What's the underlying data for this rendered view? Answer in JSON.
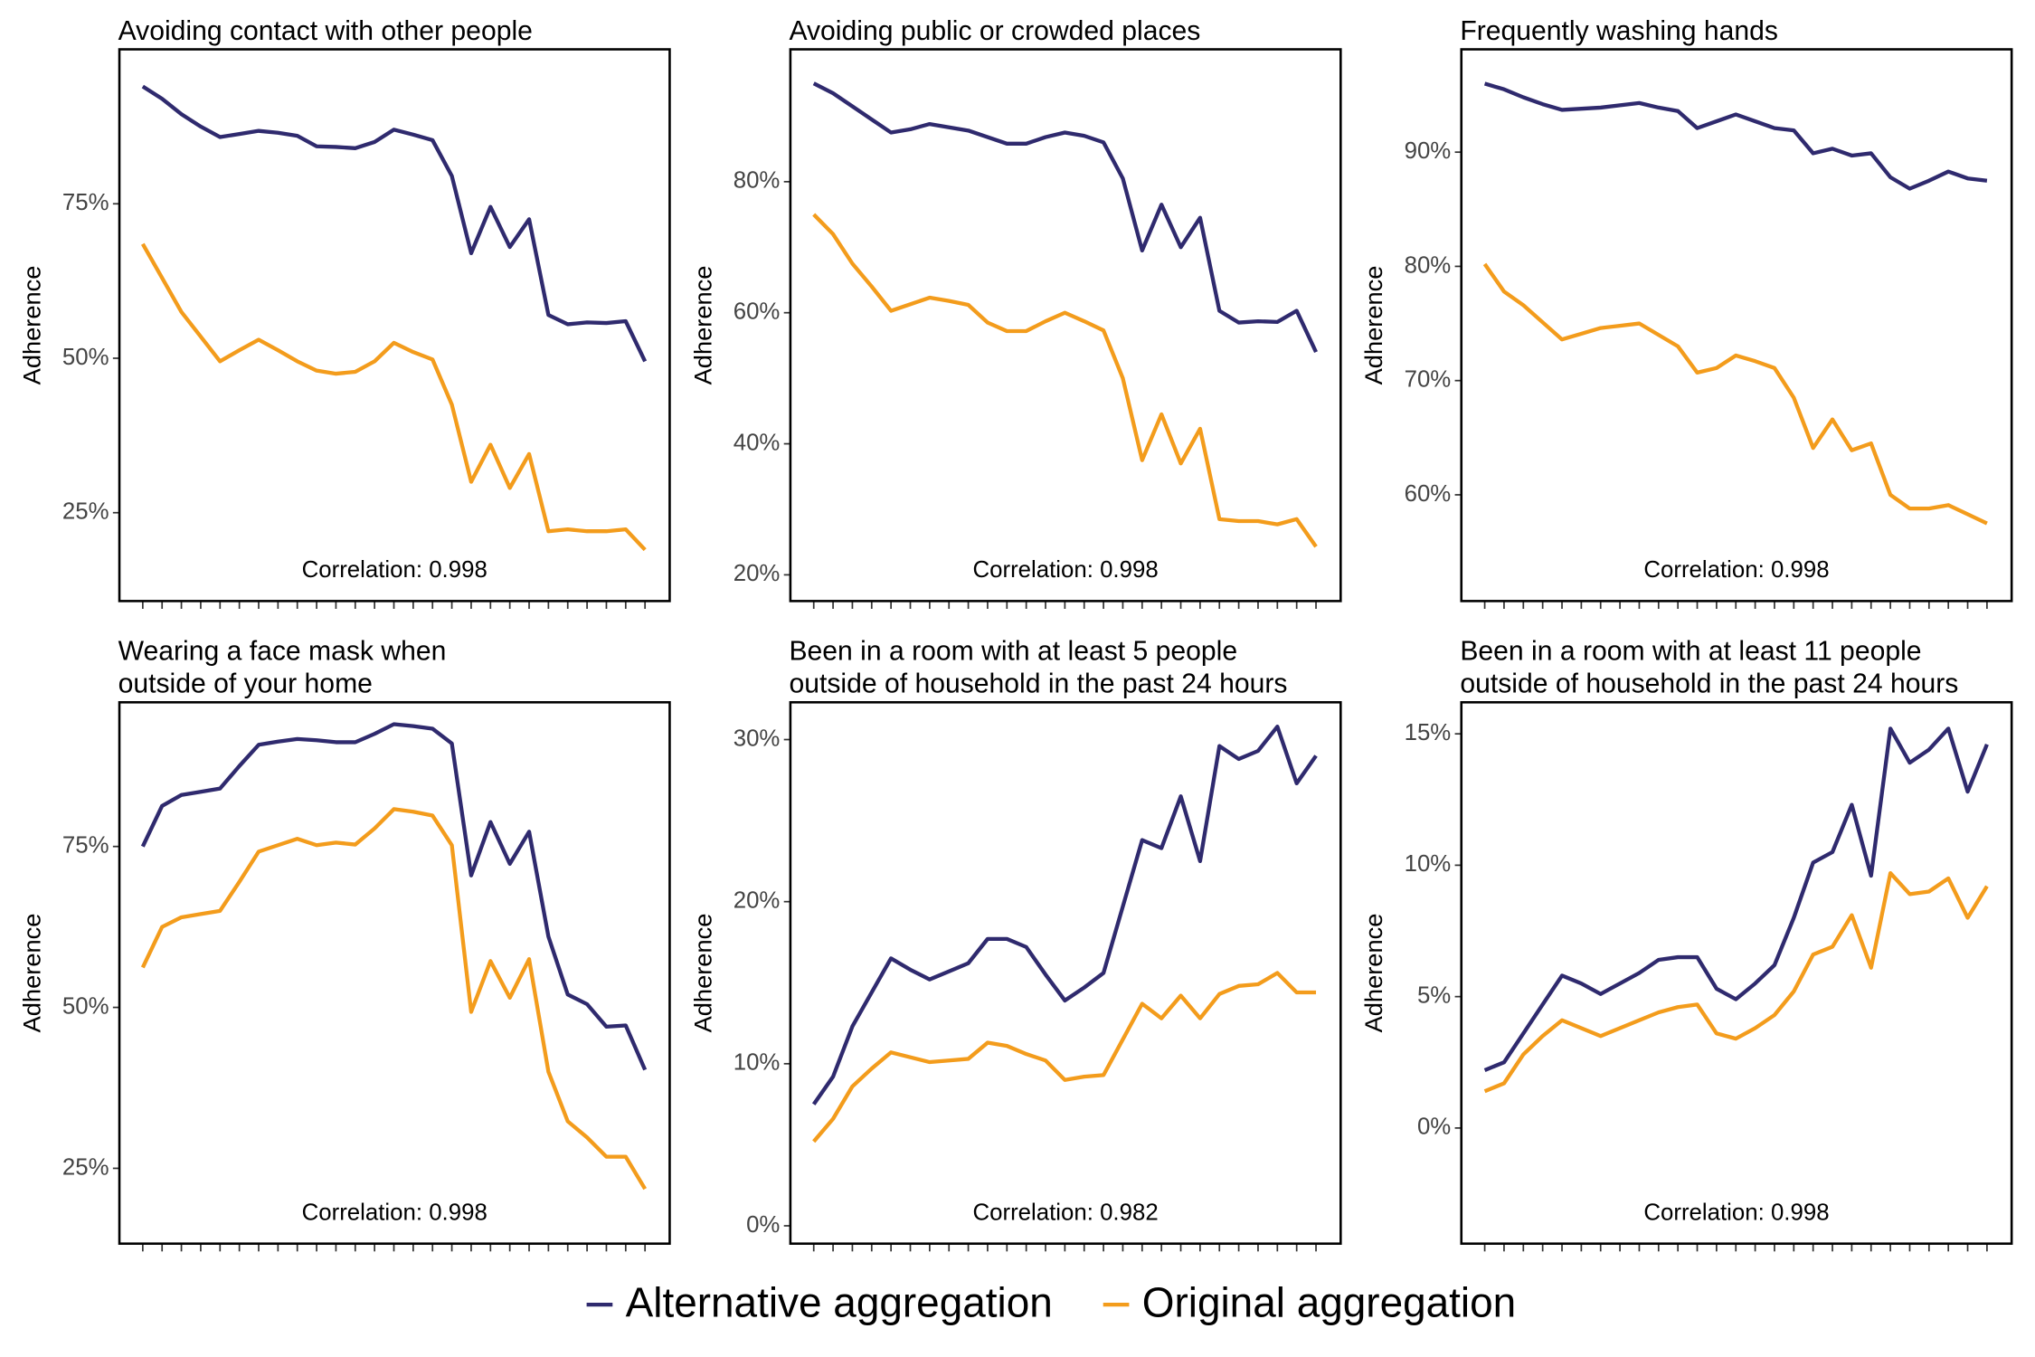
{
  "chart_data": [
    {
      "type": "line",
      "title": [
        "Avoiding contact with other people"
      ],
      "ylabel": "Adherence",
      "annotation": "Correlation: 0.998",
      "categories": [
        null,
        null,
        null,
        null,
        null,
        null,
        null,
        null,
        null,
        null,
        null,
        null,
        null,
        null,
        null,
        null,
        null,
        null,
        null,
        null,
        null,
        null,
        null,
        null,
        null,
        null,
        null
      ],
      "series": [
        {
          "name": "Alternative aggregation",
          "color": "#2f2a6e",
          "values": [
            94,
            92,
            89.5,
            87.5,
            85.8,
            86.3,
            86.8,
            86.5,
            86,
            84.3,
            84.2,
            84,
            85,
            87,
            86.2,
            85.3,
            79.5,
            67,
            74.5,
            68,
            72.5,
            57,
            55.5,
            55.8,
            55.7,
            56,
            49.5
          ]
        },
        {
          "name": "Original aggregation",
          "color": "#f39c1c",
          "values": [
            68.5,
            63,
            57.5,
            53.5,
            49.5,
            51.3,
            53,
            51.3,
            49.5,
            48,
            47.5,
            47.8,
            49.5,
            52.5,
            51,
            49.8,
            42.5,
            30,
            36,
            29,
            34.5,
            22,
            22.3,
            22,
            22,
            22.3,
            19
          ]
        }
      ],
      "ylim": [
        10.7,
        100
      ],
      "yticks": [
        {
          "value": 25,
          "label": "25%"
        },
        {
          "value": 50,
          "label": "50%"
        },
        {
          "value": 75,
          "label": "75%"
        }
      ]
    },
    {
      "type": "line",
      "title": [
        "Avoiding public or crowded places"
      ],
      "ylabel": "Adherence",
      "annotation": "Correlation: 0.998",
      "categories": [
        null,
        null,
        null,
        null,
        null,
        null,
        null,
        null,
        null,
        null,
        null,
        null,
        null,
        null,
        null,
        null,
        null,
        null,
        null,
        null,
        null,
        null,
        null,
        null,
        null,
        null,
        null
      ],
      "series": [
        {
          "name": "Alternative aggregation",
          "color": "#2f2a6e",
          "values": [
            95,
            93.5,
            91.5,
            89.5,
            87.5,
            88,
            88.8,
            88.3,
            87.8,
            86.8,
            85.8,
            85.8,
            86.8,
            87.5,
            87,
            86,
            80.5,
            69.5,
            76.5,
            70,
            74.5,
            60.3,
            58.5,
            58.7,
            58.6,
            60.3,
            54
          ]
        },
        {
          "name": "Original aggregation",
          "color": "#f39c1c",
          "values": [
            75,
            72,
            67.5,
            64,
            60.3,
            61.3,
            62.3,
            61.8,
            61.2,
            58.5,
            57.2,
            57.2,
            58.7,
            60,
            58.7,
            57.3,
            50,
            37.5,
            44.5,
            37,
            42.3,
            28.5,
            28.2,
            28.2,
            27.7,
            28.5,
            24.3
          ]
        }
      ],
      "ylim": [
        16,
        100.2
      ],
      "yticks": [
        {
          "value": 20,
          "label": "20%"
        },
        {
          "value": 40,
          "label": "40%"
        },
        {
          "value": 60,
          "label": "60%"
        },
        {
          "value": 80,
          "label": "80%"
        }
      ]
    },
    {
      "type": "line",
      "title": [
        "Frequently washing hands"
      ],
      "ylabel": "Adherence",
      "annotation": "Correlation: 0.998",
      "categories": [
        null,
        null,
        null,
        null,
        null,
        null,
        null,
        null,
        null,
        null,
        null,
        null,
        null,
        null,
        null,
        null,
        null,
        null,
        null,
        null,
        null,
        null,
        null,
        null,
        null,
        null,
        null
      ],
      "series": [
        {
          "name": "Alternative aggregation",
          "color": "#2f2a6e",
          "values": [
            96,
            95.5,
            94.8,
            94.2,
            93.7,
            93.8,
            93.9,
            94.1,
            94.3,
            93.9,
            93.6,
            92.1,
            92.7,
            93.3,
            92.7,
            92.1,
            91.9,
            89.9,
            90.3,
            89.7,
            89.9,
            87.8,
            86.8,
            87.5,
            88.3,
            87.7,
            87.5
          ]
        },
        {
          "name": "Original aggregation",
          "color": "#f39c1c",
          "values": [
            80.2,
            77.8,
            76.6,
            75.1,
            73.6,
            74.1,
            74.6,
            74.8,
            75,
            74,
            73,
            70.7,
            71.1,
            72.2,
            71.7,
            71.1,
            68.5,
            64.1,
            66.6,
            63.9,
            64.5,
            60,
            58.8,
            58.8,
            59.1,
            58.3,
            57.5
          ]
        }
      ],
      "ylim": [
        50.7,
        99
      ],
      "yticks": [
        {
          "value": 60,
          "label": "60%"
        },
        {
          "value": 70,
          "label": "70%"
        },
        {
          "value": 80,
          "label": "80%"
        },
        {
          "value": 90,
          "label": "90%"
        }
      ]
    },
    {
      "type": "line",
      "title": [
        "Wearing a face mask when",
        "outside of your home"
      ],
      "ylabel": "Adherence",
      "annotation": "Correlation: 0.998",
      "categories": [
        null,
        null,
        null,
        null,
        null,
        null,
        null,
        null,
        null,
        null,
        null,
        null,
        null,
        null,
        null,
        null,
        null,
        null,
        null,
        null,
        null,
        null,
        null,
        null,
        null,
        null,
        null
      ],
      "series": [
        {
          "name": "Alternative aggregation",
          "color": "#2f2a6e",
          "values": [
            75,
            81.3,
            83,
            83.5,
            84,
            87.5,
            90.8,
            91.3,
            91.7,
            91.5,
            91.2,
            91.2,
            92.5,
            94,
            93.7,
            93.3,
            91,
            70.5,
            78.8,
            72.3,
            77.3,
            61,
            52,
            50.5,
            47,
            47.2,
            40.3
          ]
        },
        {
          "name": "Original aggregation",
          "color": "#f39c1c",
          "values": [
            56.2,
            62.5,
            64,
            64.5,
            65,
            69.5,
            74.2,
            75.2,
            76.2,
            75.2,
            75.6,
            75.3,
            77.8,
            80.8,
            80.4,
            79.8,
            75.2,
            49.3,
            57.2,
            51.5,
            57.5,
            40,
            32.3,
            29.8,
            26.8,
            26.8,
            21.8
          ]
        }
      ],
      "ylim": [
        13.3,
        97.4
      ],
      "yticks": [
        {
          "value": 25,
          "label": "25%"
        },
        {
          "value": 50,
          "label": "50%"
        },
        {
          "value": 75,
          "label": "75%"
        }
      ]
    },
    {
      "type": "line",
      "title": [
        "Been in a room with at least 5 people",
        "outside of household in the past 24 hours"
      ],
      "ylabel": "Adherence",
      "annotation": "Correlation: 0.982",
      "categories": [
        null,
        null,
        null,
        null,
        null,
        null,
        null,
        null,
        null,
        null,
        null,
        null,
        null,
        null,
        null,
        null,
        null,
        null,
        null,
        null,
        null,
        null,
        null,
        null,
        null,
        null,
        null
      ],
      "series": [
        {
          "name": "Alternative aggregation",
          "color": "#2f2a6e",
          "values": [
            7.5,
            9.2,
            12.3,
            14.4,
            16.5,
            15.8,
            15.2,
            15.7,
            16.2,
            17.7,
            17.7,
            17.2,
            15.5,
            13.9,
            14.7,
            15.6,
            19.7,
            23.8,
            23.3,
            26.5,
            22.5,
            29.6,
            28.8,
            29.3,
            30.8,
            27.3,
            29
          ]
        },
        {
          "name": "Original aggregation",
          "color": "#f39c1c",
          "values": [
            5.2,
            6.6,
            8.6,
            9.7,
            10.7,
            10.4,
            10.1,
            10.2,
            10.3,
            11.3,
            11.1,
            10.6,
            10.2,
            9,
            9.2,
            9.3,
            11.5,
            13.7,
            12.8,
            14.2,
            12.8,
            14.3,
            14.8,
            14.9,
            15.6,
            14.4,
            14.4
          ]
        }
      ],
      "ylim": [
        -1.1,
        32.3
      ],
      "yticks": [
        {
          "value": 0,
          "label": "0%"
        },
        {
          "value": 10,
          "label": "10%"
        },
        {
          "value": 20,
          "label": "20%"
        },
        {
          "value": 30,
          "label": "30%"
        }
      ]
    },
    {
      "type": "line",
      "title": [
        "Been in a room with at least 11 people",
        "outside of household in the past 24 hours"
      ],
      "ylabel": "Adherence",
      "annotation": "Correlation: 0.998",
      "categories": [
        null,
        null,
        null,
        null,
        null,
        null,
        null,
        null,
        null,
        null,
        null,
        null,
        null,
        null,
        null,
        null,
        null,
        null,
        null,
        null,
        null,
        null,
        null,
        null,
        null,
        null,
        null
      ],
      "series": [
        {
          "name": "Alternative aggregation",
          "color": "#2f2a6e",
          "values": [
            2.2,
            2.5,
            3.6,
            4.7,
            5.8,
            5.5,
            5.1,
            5.5,
            5.9,
            6.4,
            6.5,
            6.5,
            5.3,
            4.9,
            5.5,
            6.2,
            8,
            10.1,
            10.5,
            12.3,
            9.6,
            15.2,
            13.9,
            14.4,
            15.2,
            12.8,
            14.6
          ]
        },
        {
          "name": "Original aggregation",
          "color": "#f39c1c",
          "values": [
            1.4,
            1.7,
            2.8,
            3.5,
            4.1,
            3.8,
            3.5,
            3.8,
            4.1,
            4.4,
            4.6,
            4.7,
            3.6,
            3.4,
            3.8,
            4.3,
            5.2,
            6.6,
            6.9,
            8.1,
            6.1,
            9.7,
            8.9,
            9,
            9.5,
            8,
            9.2
          ]
        }
      ],
      "ylim": [
        -4.4,
        16.2
      ],
      "yticks": [
        {
          "value": 0,
          "label": "0%"
        },
        {
          "value": 5,
          "label": "5%"
        },
        {
          "value": 10,
          "label": "10%"
        },
        {
          "value": 15,
          "label": "15%"
        }
      ]
    }
  ]
}
